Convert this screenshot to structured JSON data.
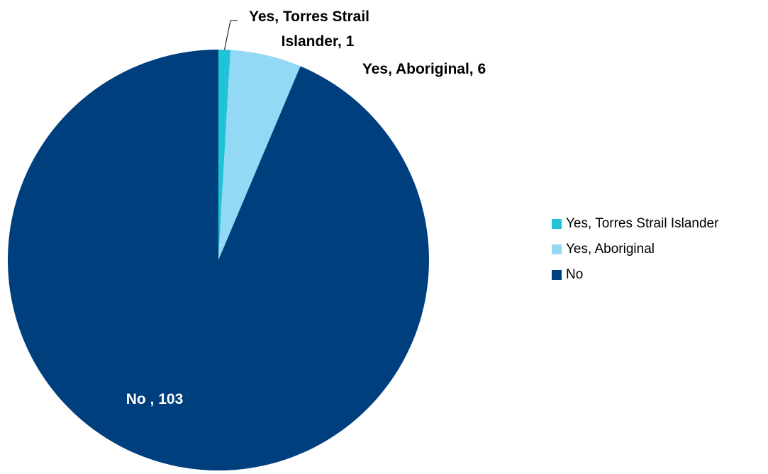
{
  "chart_data": {
    "type": "pie",
    "title": "",
    "slices": [
      {
        "label": "Yes, Torres Strail Islander",
        "value": 1,
        "color": "#22C3D6",
        "data_label": "Yes, Torres Strail Islander, 1",
        "data_label_lines": [
          "Yes, Torres Strail",
          "Islander, 1"
        ]
      },
      {
        "label": "Yes, Aboriginal",
        "value": 6,
        "color": "#93D8F4",
        "data_label": "Yes, Aboriginal, 6",
        "data_label_lines": [
          "Yes, Aboriginal, 6"
        ]
      },
      {
        "label": "No",
        "value": 103,
        "color": "#003F7D",
        "data_label": "No , 103",
        "data_label_lines": [
          "No , 103"
        ]
      }
    ],
    "legend": {
      "position": "right",
      "entries": [
        "Yes, Torres Strail Islander",
        "Yes, Aboriginal",
        "No"
      ]
    },
    "start_angle": "12 o'clock",
    "direction": "clockwise"
  }
}
